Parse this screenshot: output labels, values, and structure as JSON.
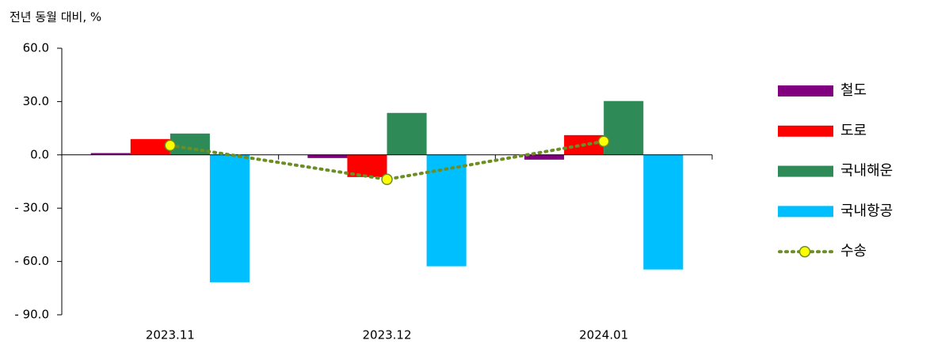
{
  "chart_data": {
    "type": "bar",
    "y_axis_label": "전년 동월 대비, %",
    "categories": [
      "2023.11",
      "2023.12",
      "2024.01"
    ],
    "ylim": [
      -90,
      60
    ],
    "yticks": [
      {
        "value": 60,
        "label": "60.0"
      },
      {
        "value": 30,
        "label": "30.0"
      },
      {
        "value": 0,
        "label": "0.0"
      },
      {
        "value": -30,
        "label": "- 30.0"
      },
      {
        "value": -60,
        "label": "- 60.0"
      },
      {
        "value": -90,
        "label": "- 90.0"
      }
    ],
    "series": [
      {
        "name": "철도",
        "color": "#800080",
        "values": [
          1.0,
          -1.8,
          -2.7
        ]
      },
      {
        "name": "도로",
        "color": "#ff0000",
        "values": [
          8.9,
          -12.5,
          11.1
        ]
      },
      {
        "name": "국내해운",
        "color": "#2e8b57",
        "values": [
          12.0,
          23.6,
          30.3
        ]
      },
      {
        "name": "국내항공",
        "color": "#00bfff",
        "values": [
          -71.7,
          -62.7,
          -64.5
        ]
      },
      {
        "name": "수송",
        "type": "line",
        "color": "#6b8e23",
        "marker_color": "#ffff00",
        "values": [
          5.3,
          -13.8,
          7.6
        ]
      }
    ],
    "legend": "right"
  }
}
